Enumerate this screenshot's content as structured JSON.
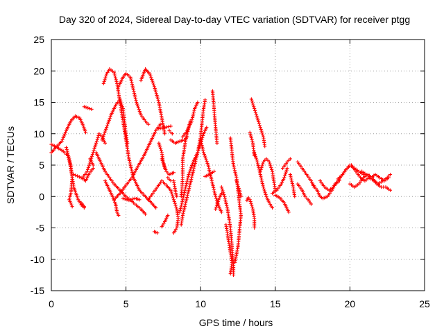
{
  "chart_data": {
    "type": "scatter",
    "title": "Day 320 of 2024, Sidereal Day-to-day VTEC variation (SDTVAR) for receiver ptgg",
    "xlabel": "GPS time / hours",
    "ylabel": "SDTVAR / TECUs",
    "xlim": [
      0,
      25
    ],
    "ylim": [
      -15,
      25
    ],
    "xticks": [
      "0",
      "5",
      "10",
      "15",
      "20",
      "25"
    ],
    "yticks": [
      "-15",
      "-10",
      "-5",
      "0",
      "5",
      "10",
      "15",
      "20",
      "25"
    ],
    "grid": true,
    "marker": "+",
    "series_color": "#ff0000",
    "tracks": [
      [
        [
          0.0,
          7.0
        ],
        [
          0.3,
          7.8
        ],
        [
          0.7,
          8.8
        ],
        [
          1.0,
          10.5
        ],
        [
          1.3,
          12.0
        ],
        [
          1.6,
          12.8
        ],
        [
          1.9,
          12.5
        ],
        [
          2.1,
          11.5
        ],
        [
          2.3,
          10.2
        ]
      ],
      [
        [
          0.0,
          8.3
        ],
        [
          0.4,
          7.8
        ],
        [
          0.8,
          7.2
        ],
        [
          1.1,
          6.5
        ],
        [
          1.3,
          5.0
        ],
        [
          1.4,
          3.0
        ],
        [
          1.5,
          1.5
        ],
        [
          1.6,
          0.8
        ],
        [
          1.8,
          -0.5
        ],
        [
          2.0,
          -1.3
        ],
        [
          2.2,
          -1.8
        ]
      ],
      [
        [
          1.0,
          7.8
        ],
        [
          1.2,
          6.0
        ],
        [
          1.3,
          4.5
        ],
        [
          1.4,
          3.0
        ],
        [
          1.35,
          1.5
        ],
        [
          1.3,
          0.5
        ],
        [
          1.2,
          -0.5
        ],
        [
          1.4,
          -1.6
        ]
      ],
      [
        [
          2.1,
          3.0
        ],
        [
          2.4,
          4.0
        ],
        [
          2.6,
          5.5
        ],
        [
          2.8,
          7.0
        ],
        [
          3.0,
          8.5
        ],
        [
          3.2,
          10.0
        ],
        [
          3.4,
          9.5
        ],
        [
          3.6,
          8.5
        ]
      ],
      [
        [
          3.0,
          7.0
        ],
        [
          3.2,
          6.0
        ],
        [
          3.4,
          5.0
        ],
        [
          3.6,
          4.0
        ],
        [
          3.9,
          3.0
        ],
        [
          4.2,
          2.0
        ],
        [
          4.6,
          1.0
        ],
        [
          5.0,
          0.0
        ],
        [
          5.5,
          -1.0
        ],
        [
          6.0,
          -2.0
        ],
        [
          6.3,
          -2.8
        ]
      ],
      [
        [
          3.4,
          9.0
        ],
        [
          3.7,
          11.0
        ],
        [
          4.0,
          13.0
        ],
        [
          4.3,
          14.5
        ],
        [
          4.6,
          15.5
        ],
        [
          4.8,
          14.0
        ],
        [
          4.9,
          12.0
        ],
        [
          5.0,
          10.0
        ],
        [
          5.1,
          8.5
        ]
      ],
      [
        [
          3.5,
          18.0
        ],
        [
          3.7,
          19.5
        ],
        [
          3.9,
          20.3
        ],
        [
          4.2,
          19.8
        ],
        [
          4.4,
          18.0
        ],
        [
          4.6,
          15.0
        ],
        [
          4.8,
          12.0
        ],
        [
          5.0,
          9.0
        ],
        [
          5.2,
          6.0
        ],
        [
          5.5,
          3.0
        ],
        [
          5.9,
          1.0
        ],
        [
          6.3,
          0.0
        ],
        [
          6.7,
          -1.0
        ],
        [
          7.0,
          -1.8
        ]
      ],
      [
        [
          3.6,
          2.5
        ],
        [
          3.9,
          1.0
        ],
        [
          4.1,
          0.0
        ],
        [
          4.3,
          -1.2
        ],
        [
          4.4,
          -2.5
        ],
        [
          4.5,
          -3.0
        ]
      ],
      [
        [
          4.2,
          -0.5
        ],
        [
          4.6,
          0.5
        ],
        [
          5.0,
          1.8
        ],
        [
          5.4,
          3.0
        ],
        [
          5.8,
          4.8
        ],
        [
          6.2,
          6.5
        ],
        [
          6.6,
          8.5
        ],
        [
          7.0,
          10.5
        ],
        [
          7.3,
          11.5
        ]
      ],
      [
        [
          4.5,
          17.5
        ],
        [
          4.8,
          19.0
        ],
        [
          5.0,
          19.6
        ],
        [
          5.3,
          19.0
        ],
        [
          5.5,
          17.0
        ],
        [
          5.7,
          15.0
        ],
        [
          6.0,
          13.0
        ],
        [
          6.3,
          12.0
        ],
        [
          6.5,
          11.5
        ]
      ],
      [
        [
          6.0,
          18.5
        ],
        [
          6.3,
          20.3
        ],
        [
          6.6,
          19.5
        ],
        [
          6.9,
          17.5
        ],
        [
          7.2,
          15.0
        ],
        [
          7.4,
          12.5
        ],
        [
          7.6,
          10.0
        ]
      ],
      [
        [
          4.8,
          -0.3
        ],
        [
          5.2,
          -0.6
        ],
        [
          5.6,
          -0.3
        ],
        [
          5.9,
          -0.5
        ]
      ],
      [
        [
          6.5,
          -0.5
        ],
        [
          6.8,
          0.5
        ],
        [
          7.1,
          1.5
        ],
        [
          7.4,
          2.5
        ],
        [
          7.7,
          1.8
        ],
        [
          8.0,
          1.0
        ],
        [
          8.2,
          -0.5
        ],
        [
          8.4,
          -2.0
        ],
        [
          8.5,
          -3.5
        ],
        [
          8.4,
          -5.0
        ],
        [
          8.2,
          -5.8
        ]
      ],
      [
        [
          7.2,
          10.8
        ],
        [
          7.6,
          11.0
        ],
        [
          8.0,
          11.2
        ]
      ],
      [
        [
          6.9,
          -5.6
        ],
        [
          7.1,
          -5.8
        ]
      ],
      [
        [
          7.4,
          -4.8
        ],
        [
          7.6,
          -4.0
        ],
        [
          7.8,
          -3.0
        ]
      ],
      [
        [
          7.2,
          8.5
        ],
        [
          7.4,
          7.0
        ],
        [
          7.5,
          5.5
        ],
        [
          7.6,
          4.5
        ]
      ],
      [
        [
          7.4,
          6.0
        ],
        [
          7.7,
          4.0
        ],
        [
          7.9,
          3.5
        ],
        [
          8.2,
          3.8
        ]
      ],
      [
        [
          7.9,
          10.5
        ],
        [
          8.1,
          10.0
        ]
      ],
      [
        [
          8.0,
          9.0
        ],
        [
          8.3,
          8.5
        ],
        [
          8.6,
          8.8
        ],
        [
          8.9,
          9.0
        ],
        [
          9.1,
          9.5
        ]
      ],
      [
        [
          8.7,
          -4.5
        ],
        [
          8.8,
          -3.0
        ],
        [
          9.0,
          -1.0
        ],
        [
          9.2,
          1.0
        ],
        [
          9.4,
          3.0
        ],
        [
          9.6,
          5.0
        ],
        [
          9.8,
          7.0
        ],
        [
          10.0,
          9.5
        ],
        [
          10.1,
          12.0
        ],
        [
          10.2,
          14.0
        ],
        [
          10.3,
          15.4
        ]
      ],
      [
        [
          8.6,
          -2.5
        ],
        [
          8.8,
          -0.5
        ],
        [
          9.0,
          1.5
        ],
        [
          9.2,
          3.5
        ],
        [
          9.5,
          5.5
        ],
        [
          9.8,
          7.0
        ],
        [
          10.0,
          8.5
        ],
        [
          10.2,
          10.0
        ],
        [
          10.4,
          11.0
        ]
      ],
      [
        [
          8.8,
          9.5
        ],
        [
          9.1,
          10.5
        ],
        [
          9.4,
          12.0
        ],
        [
          9.6,
          14.0
        ],
        [
          9.8,
          15.0
        ]
      ],
      [
        [
          8.2,
          2.5
        ],
        [
          8.3,
          1.0
        ],
        [
          8.4,
          0.0
        ]
      ],
      [
        [
          9.3,
          12.0
        ],
        [
          9.0,
          9.0
        ],
        [
          8.8,
          6.0
        ],
        [
          8.8,
          3.0
        ],
        [
          8.7,
          0.0
        ]
      ],
      [
        [
          10.0,
          9.0
        ],
        [
          10.2,
          7.0
        ],
        [
          10.5,
          5.0
        ],
        [
          10.8,
          2.0
        ],
        [
          11.0,
          0.0
        ],
        [
          11.2,
          -1.5
        ],
        [
          11.4,
          -2.5
        ]
      ],
      [
        [
          10.3,
          3.2
        ],
        [
          10.6,
          3.5
        ],
        [
          10.9,
          4.0
        ]
      ],
      [
        [
          10.8,
          16.8
        ],
        [
          10.9,
          14.0
        ],
        [
          11.0,
          11.0
        ],
        [
          11.1,
          8.5
        ]
      ],
      [
        [
          11.0,
          -2.0
        ],
        [
          11.2,
          -0.5
        ],
        [
          11.4,
          0.5
        ]
      ],
      [
        [
          11.4,
          1.5
        ],
        [
          11.6,
          0.0
        ],
        [
          11.8,
          -2.0
        ],
        [
          12.0,
          -5.0
        ],
        [
          12.1,
          -8.0
        ],
        [
          12.2,
          -11.0
        ],
        [
          12.2,
          -12.5
        ]
      ],
      [
        [
          11.7,
          -4.5
        ],
        [
          11.8,
          -6.0
        ],
        [
          11.9,
          -7.5
        ],
        [
          12.0,
          -9.0
        ],
        [
          12.1,
          -10.5
        ],
        [
          12.0,
          -12.3
        ]
      ],
      [
        [
          12.0,
          9.3
        ],
        [
          12.1,
          7.0
        ],
        [
          12.2,
          5.0
        ],
        [
          12.4,
          3.0
        ],
        [
          12.5,
          1.0
        ],
        [
          12.6,
          -1.0
        ],
        [
          12.7,
          -3.0
        ],
        [
          12.6,
          -5.5
        ],
        [
          12.5,
          -8.0
        ],
        [
          12.3,
          -10.5
        ]
      ],
      [
        [
          12.4,
          2.5
        ],
        [
          12.6,
          1.0
        ],
        [
          12.7,
          0.0
        ]
      ],
      [
        [
          13.3,
          10.2
        ],
        [
          13.5,
          8.5
        ],
        [
          13.6,
          6.5
        ]
      ],
      [
        [
          13.4,
          15.5
        ],
        [
          13.6,
          14.0
        ],
        [
          13.8,
          12.5
        ],
        [
          14.0,
          11.0
        ],
        [
          14.2,
          9.5
        ],
        [
          14.3,
          8.0
        ]
      ],
      [
        [
          13.3,
          -0.5
        ],
        [
          13.5,
          -2.0
        ],
        [
          13.6,
          -3.5
        ],
        [
          13.6,
          -5.0
        ]
      ],
      [
        [
          13.6,
          7.0
        ],
        [
          13.8,
          5.5
        ],
        [
          14.0,
          3.5
        ],
        [
          14.2,
          1.5
        ],
        [
          14.4,
          0.0
        ],
        [
          14.6,
          -1.0
        ],
        [
          14.8,
          -1.8
        ]
      ],
      [
        [
          14.0,
          4.0
        ],
        [
          14.2,
          5.5
        ],
        [
          14.4,
          6.0
        ],
        [
          14.6,
          5.5
        ],
        [
          14.8,
          4.0
        ],
        [
          14.9,
          2.5
        ],
        [
          15.0,
          1.0
        ]
      ],
      [
        [
          14.8,
          0.5
        ],
        [
          15.1,
          1.0
        ],
        [
          15.4,
          2.0
        ],
        [
          15.6,
          3.0
        ],
        [
          15.8,
          4.5
        ]
      ],
      [
        [
          15.0,
          0.2
        ],
        [
          15.3,
          -0.2
        ],
        [
          15.6,
          -1.0
        ],
        [
          15.9,
          -2.5
        ]
      ],
      [
        [
          15.5,
          4.5
        ],
        [
          15.8,
          5.5
        ],
        [
          16.0,
          6.0
        ]
      ],
      [
        [
          16.0,
          3.5
        ],
        [
          16.2,
          1.5
        ],
        [
          16.3,
          0.0
        ]
      ],
      [
        [
          16.5,
          5.5
        ],
        [
          16.8,
          4.5
        ],
        [
          17.1,
          3.5
        ],
        [
          17.4,
          2.5
        ],
        [
          17.6,
          1.5
        ]
      ],
      [
        [
          16.5,
          2.0
        ],
        [
          16.8,
          1.0
        ],
        [
          17.0,
          0.0
        ],
        [
          17.2,
          -0.5
        ],
        [
          17.4,
          -1.2
        ]
      ],
      [
        [
          17.5,
          2.0
        ],
        [
          17.8,
          1.0
        ],
        [
          18.0,
          0.0
        ],
        [
          18.2,
          -0.3
        ],
        [
          18.5,
          0.0
        ],
        [
          18.8,
          1.0
        ],
        [
          19.0,
          2.0
        ],
        [
          19.3,
          2.5
        ]
      ],
      [
        [
          18.0,
          2.5
        ],
        [
          18.3,
          1.5
        ],
        [
          18.6,
          1.0
        ],
        [
          18.9,
          1.5
        ],
        [
          19.2,
          2.5
        ],
        [
          19.5,
          3.5
        ],
        [
          19.8,
          4.5
        ],
        [
          20.0,
          5.0
        ],
        [
          20.3,
          4.5
        ],
        [
          20.6,
          4.0
        ],
        [
          20.9,
          3.5
        ]
      ],
      [
        [
          19.2,
          2.8
        ],
        [
          19.5,
          3.5
        ],
        [
          19.8,
          4.5
        ],
        [
          20.1,
          5.0
        ],
        [
          20.4,
          4.0
        ],
        [
          20.7,
          3.0
        ],
        [
          21.0,
          2.5
        ],
        [
          21.3,
          3.0
        ],
        [
          21.6,
          2.5
        ],
        [
          21.9,
          2.0
        ],
        [
          22.2,
          2.5
        ],
        [
          22.5,
          3.0
        ],
        [
          22.7,
          3.5
        ]
      ],
      [
        [
          20.0,
          2.0
        ],
        [
          20.3,
          1.5
        ],
        [
          20.6,
          2.0
        ],
        [
          20.9,
          3.0
        ],
        [
          21.2,
          3.5
        ],
        [
          21.5,
          3.0
        ],
        [
          21.8,
          2.0
        ],
        [
          22.1,
          1.5
        ],
        [
          22.4,
          1.5
        ],
        [
          22.7,
          1.0
        ]
      ],
      [
        [
          20.8,
          4.0
        ],
        [
          21.1,
          3.5
        ],
        [
          21.4,
          3.0
        ],
        [
          21.7,
          3.5
        ],
        [
          22.0,
          3.0
        ],
        [
          22.3,
          2.5
        ],
        [
          22.6,
          3.0
        ]
      ],
      [
        [
          1.5,
          3.5
        ],
        [
          2.0,
          3.0
        ],
        [
          2.3,
          2.5
        ],
        [
          2.5,
          3.5
        ],
        [
          2.8,
          4.5
        ]
      ],
      [
        [
          2.6,
          6.0
        ],
        [
          2.8,
          5.0
        ]
      ],
      [
        [
          2.2,
          14.3
        ],
        [
          2.7,
          13.9
        ]
      ],
      [
        [
          2.0,
          -1.0
        ],
        [
          2.2,
          -1.6
        ]
      ],
      [
        [
          7.8,
          3.0
        ],
        [
          8.0,
          2.5
        ]
      ],
      [
        [
          13.2,
          -0.2
        ],
        [
          13.1,
          -0.6
        ]
      ]
    ]
  }
}
